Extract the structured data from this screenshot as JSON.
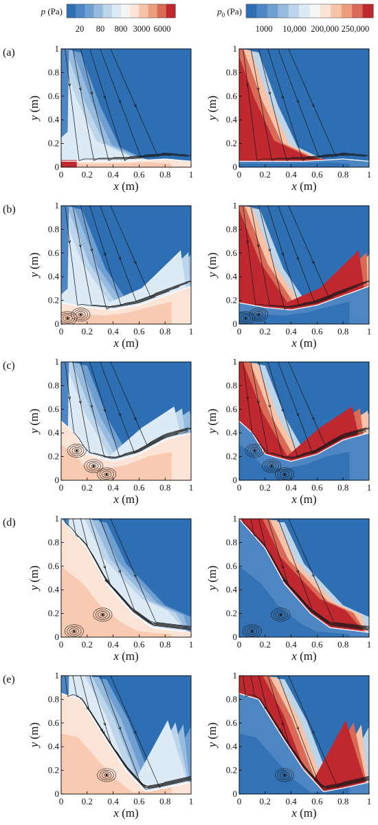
{
  "colors": {
    "scale": [
      "#2e6fb3",
      "#4d86c2",
      "#6f9ed0",
      "#96bbdf",
      "#bcd5eb",
      "#dceaf5",
      "#f5f5f5",
      "#fbe3d6",
      "#f6c3a8",
      "#ec9d7c",
      "#d96a56",
      "#c0282f"
    ],
    "streamline": "#1a1a1a",
    "boundary": "#ffffff"
  },
  "colorbars": [
    {
      "title_main": "p",
      "title_unit": " (Pa)",
      "ticks": [
        "20",
        "80",
        "800",
        "3000",
        "6000"
      ]
    },
    {
      "title_main": "p",
      "title_sub": "0",
      "title_unit": " (Pa)",
      "ticks": [
        "1000",
        "10,000",
        "200,000",
        "250,000"
      ]
    }
  ],
  "axes": {
    "xlabel_main": "x",
    "xlabel_unit": " (m)",
    "ylabel_main": "y",
    "ylabel_unit": " (m)",
    "x_ticks": [
      "0",
      "0.2",
      "0.4",
      "0.6",
      "0.8",
      "1"
    ],
    "y_ticks": [
      "0",
      "0.2",
      "0.4",
      "0.6",
      "0.8",
      "1"
    ]
  },
  "row_labels": [
    "(a)",
    "(b)",
    "(c)",
    "(d)",
    "(e)"
  ],
  "chart_data": {
    "type": "contour",
    "xlim": [
      0,
      1
    ],
    "ylim": [
      0,
      1
    ],
    "columns": [
      "p (Pa)",
      "p0 (Pa)"
    ],
    "rows": [
      {
        "label": "(a)",
        "interface": [
          [
            0,
            0.05
          ],
          [
            0.2,
            0.05
          ],
          [
            0.5,
            0.05
          ],
          [
            0.8,
            0.07
          ],
          [
            1,
            0.05
          ]
        ],
        "plume_edge": [
          [
            0.05,
            1
          ],
          [
            0.2,
            0.55
          ],
          [
            0.35,
            0.2
          ],
          [
            0.6,
            0.07
          ]
        ],
        "vortices": []
      },
      {
        "label": "(b)",
        "interface": [
          [
            0,
            0.18
          ],
          [
            0.2,
            0.14
          ],
          [
            0.4,
            0.12
          ],
          [
            0.6,
            0.16
          ],
          [
            0.8,
            0.24
          ],
          [
            1,
            0.32
          ]
        ],
        "plume_edge": [
          [
            0.06,
            1
          ],
          [
            0.24,
            0.5
          ],
          [
            0.45,
            0.16
          ],
          [
            0.7,
            0.28
          ],
          [
            1,
            0.6
          ]
        ],
        "vortices": [
          [
            0.05,
            0.05
          ],
          [
            0.15,
            0.08
          ]
        ]
      },
      {
        "label": "(c)",
        "interface": [
          [
            0,
            0.5
          ],
          [
            0.1,
            0.4
          ],
          [
            0.2,
            0.22
          ],
          [
            0.4,
            0.16
          ],
          [
            0.6,
            0.22
          ],
          [
            0.8,
            0.34
          ],
          [
            1,
            0.4
          ]
        ],
        "plume_edge": [
          [
            0.1,
            1
          ],
          [
            0.26,
            0.55
          ],
          [
            0.45,
            0.18
          ],
          [
            0.7,
            0.42
          ],
          [
            0.95,
            0.6
          ]
        ],
        "vortices": [
          [
            0.12,
            0.25
          ],
          [
            0.25,
            0.12
          ],
          [
            0.35,
            0.05
          ]
        ]
      },
      {
        "label": "(d)",
        "interface": [
          [
            0,
            1
          ],
          [
            0.2,
            0.75
          ],
          [
            0.35,
            0.45
          ],
          [
            0.55,
            0.2
          ],
          [
            0.7,
            0.08
          ],
          [
            1,
            0.04
          ]
        ],
        "plume_edge": [
          [
            0.25,
            1
          ],
          [
            0.4,
            0.65
          ],
          [
            0.7,
            0.3
          ],
          [
            0.9,
            0.2
          ]
        ],
        "vortices": [
          [
            0.1,
            0.05
          ],
          [
            0.32,
            0.19
          ]
        ]
      },
      {
        "label": "(e)",
        "interface": [
          [
            0,
            0.85
          ],
          [
            0.15,
            0.8
          ],
          [
            0.35,
            0.45
          ],
          [
            0.5,
            0.2
          ],
          [
            0.65,
            0.02
          ],
          [
            0.8,
            0.05
          ],
          [
            1,
            0.1
          ]
        ],
        "plume_edge": [
          [
            0.25,
            1
          ],
          [
            0.42,
            0.65
          ],
          [
            0.63,
            0.05
          ],
          [
            0.9,
            0.6
          ]
        ],
        "vortices": [
          [
            0.35,
            0.16
          ]
        ]
      }
    ]
  }
}
